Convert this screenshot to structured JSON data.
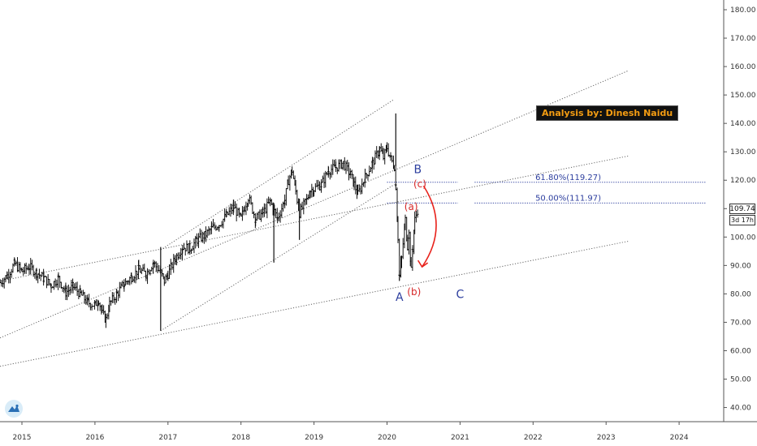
{
  "chart_data": {
    "type": "candlestick",
    "price_axis": {
      "ticks": [
        "180.00",
        "170.00",
        "160.00",
        "150.00",
        "140.00",
        "130.00",
        "120.00",
        "110.00",
        "100.00",
        "90.00",
        "80.00",
        "70.00",
        "60.00",
        "50.00",
        "40.00"
      ]
    },
    "time_axis": {
      "ticks": [
        "2015",
        "2016",
        "2017",
        "2018",
        "2019",
        "2020",
        "2021",
        "2022",
        "2023",
        "2024"
      ]
    },
    "last_price": "109.74",
    "countdown": "3d 17h",
    "fib_levels": [
      {
        "label": "61.80%(119.27)",
        "price": 119.27
      },
      {
        "label": "50.00%(111.97)",
        "price": 111.97
      }
    ],
    "wave_labels": [
      {
        "text": "A",
        "date": 2020.17,
        "price": 77.5,
        "color": "#2c3e9e"
      },
      {
        "text": "B",
        "date": 2020.42,
        "price": 122.5,
        "color": "#2c3e9e"
      },
      {
        "text": "C",
        "date": 2021.0,
        "price": 78.5,
        "color": "#2c3e9e"
      },
      {
        "text": "(a)",
        "date": 2020.33,
        "price": 109.5,
        "color": "#d62728"
      },
      {
        "text": "(b)",
        "date": 2020.37,
        "price": 79.5,
        "color": "#d62728"
      },
      {
        "text": "(c)",
        "date": 2020.45,
        "price": 117.5,
        "color": "#d62728"
      }
    ],
    "trendlines": [
      {
        "from": [
          2014.7,
          64.5
        ],
        "to": [
          2023.3,
          158.5
        ]
      },
      {
        "from": [
          2014.7,
          84.5
        ],
        "to": [
          2023.3,
          128.5
        ]
      },
      {
        "from": [
          2014.7,
          54.5
        ],
        "to": [
          2023.3,
          98.5
        ]
      },
      {
        "from": [
          2016.9,
          95.5
        ],
        "to": [
          2020.1,
          148.5
        ]
      },
      {
        "from": [
          2016.9,
          67.0
        ],
        "to": [
          2020.1,
          118.5
        ]
      }
    ],
    "projection_arrow": {
      "from": [
        2020.5,
        118.0
      ],
      "to": [
        2020.48,
        89.5
      ],
      "color": "#e8231d"
    },
    "price_series": [
      [
        2014.7,
        84.0
      ],
      [
        2014.8,
        86.5
      ],
      [
        2014.9,
        90.5
      ],
      [
        2015.0,
        88.0
      ],
      [
        2015.1,
        89.5
      ],
      [
        2015.2,
        87.5
      ],
      [
        2015.3,
        85.5
      ],
      [
        2015.4,
        83.0
      ],
      [
        2015.5,
        85.5
      ],
      [
        2015.6,
        80.5
      ],
      [
        2015.7,
        82.5
      ],
      [
        2015.8,
        80.0
      ],
      [
        2015.9,
        77.0
      ],
      [
        2016.0,
        76.0
      ],
      [
        2016.05,
        78.0
      ],
      [
        2016.1,
        73.0
      ],
      [
        2016.15,
        71.0
      ],
      [
        2016.2,
        76.5
      ],
      [
        2016.3,
        80.0
      ],
      [
        2016.4,
        83.5
      ],
      [
        2016.5,
        86.0
      ],
      [
        2016.6,
        88.5
      ],
      [
        2016.7,
        87.0
      ],
      [
        2016.8,
        91.0
      ],
      [
        2016.9,
        87.5
      ],
      [
        2016.95,
        84.5
      ],
      [
        2017.0,
        87.0
      ],
      [
        2017.1,
        92.5
      ],
      [
        2017.2,
        96.5
      ],
      [
        2017.3,
        96.0
      ],
      [
        2017.4,
        99.0
      ],
      [
        2017.5,
        100.5
      ],
      [
        2017.6,
        103.0
      ],
      [
        2017.7,
        104.5
      ],
      [
        2017.8,
        107.5
      ],
      [
        2017.9,
        110.5
      ],
      [
        2018.0,
        106.5
      ],
      [
        2018.05,
        110.5
      ],
      [
        2018.1,
        114.0
      ],
      [
        2018.2,
        106.5
      ],
      [
        2018.3,
        108.5
      ],
      [
        2018.4,
        112.5
      ],
      [
        2018.5,
        106.5
      ],
      [
        2018.6,
        113.0
      ],
      [
        2018.65,
        120.0
      ],
      [
        2018.7,
        123.5
      ],
      [
        2018.75,
        116.0
      ],
      [
        2018.8,
        108.5
      ],
      [
        2018.9,
        113.0
      ],
      [
        2018.95,
        116.5
      ],
      [
        2019.0,
        117.0
      ],
      [
        2019.1,
        118.5
      ],
      [
        2019.2,
        123.5
      ],
      [
        2019.3,
        124.5
      ],
      [
        2019.4,
        126.0
      ],
      [
        2019.5,
        122.0
      ],
      [
        2019.55,
        118.5
      ],
      [
        2019.6,
        115.0
      ],
      [
        2019.7,
        121.0
      ],
      [
        2019.8,
        126.0
      ],
      [
        2019.9,
        131.0
      ],
      [
        2019.95,
        128.0
      ],
      [
        2020.0,
        131.5
      ],
      [
        2020.05,
        127.5
      ],
      [
        2020.1,
        125.0
      ],
      [
        2020.12,
        118.0
      ],
      [
        2020.15,
        100.0
      ],
      [
        2020.17,
        86.0
      ],
      [
        2020.2,
        92.5
      ],
      [
        2020.25,
        106.0
      ],
      [
        2020.28,
        97.0
      ],
      [
        2020.3,
        101.0
      ],
      [
        2020.33,
        88.0
      ],
      [
        2020.35,
        96.0
      ],
      [
        2020.38,
        106.0
      ],
      [
        2020.42,
        109.7
      ]
    ],
    "spikes": [
      {
        "date": 2016.9,
        "high": 96.5,
        "low": 67.0
      },
      {
        "date": 2018.45,
        "high": 112.0,
        "low": 91.0
      },
      {
        "date": 2018.8,
        "high": 113.5,
        "low": 99.0
      },
      {
        "date": 2020.12,
        "high": 143.5,
        "low": 125.0
      }
    ]
  },
  "annotation": {
    "author_label": "Analysis by: Dinesh Naidu"
  },
  "colors": {
    "bars": "#111111",
    "grid_lines": "#666666",
    "fib": "#2c3e9e",
    "wave_blue": "#2c3e9e",
    "wave_red": "#d62728",
    "arrow": "#e8231d",
    "label_bg": "#111111",
    "label_fg": "#f39c12"
  },
  "icons": {
    "logo": "tradingview-logo-icon"
  }
}
